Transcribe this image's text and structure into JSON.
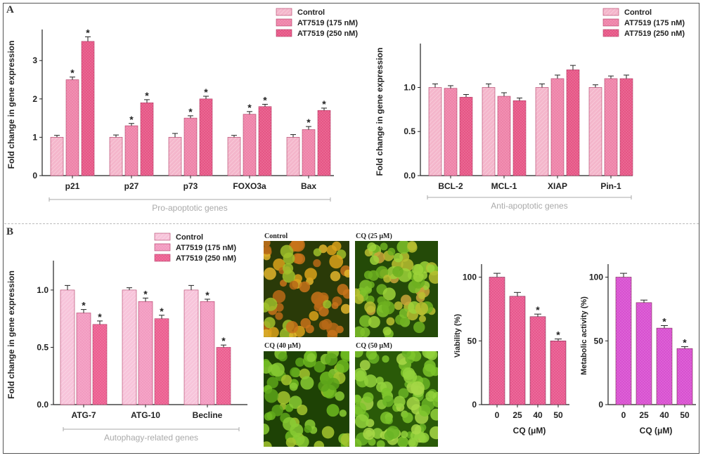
{
  "panels": {
    "a_label": "A",
    "b_label": "B"
  },
  "colors": {
    "control": "#f4b6cb",
    "dose175": "#ee82a8",
    "dose250": "#e65585",
    "b_control": "#f7c4da",
    "b_dose175": "#f29ac0",
    "b_dose250": "#ec5e90",
    "viability": "#e8578d",
    "metabolic": "#d84fd0"
  },
  "chart_data": [
    {
      "id": "pro",
      "type": "bar",
      "title": "",
      "ylabel": "Fold change in gene expression",
      "xlabel": "",
      "group_label": "Pro-apoptotic genes",
      "categories": [
        "p21",
        "p27",
        "p73",
        "FOXO3a",
        "Bax"
      ],
      "ylim": [
        0,
        3.7
      ],
      "yticks": [
        "0",
        "1",
        "2",
        "3"
      ],
      "legend_position": "top-right",
      "series": [
        {
          "name": "Control",
          "values": [
            1.0,
            1.0,
            1.0,
            1.0,
            1.0
          ],
          "errors": [
            0.05,
            0.06,
            0.1,
            0.05,
            0.07
          ],
          "stars": [
            false,
            false,
            false,
            false,
            false
          ]
        },
        {
          "name": "AT7519 (175 nM)",
          "values": [
            2.5,
            1.3,
            1.5,
            1.6,
            1.2
          ],
          "errors": [
            0.07,
            0.06,
            0.06,
            0.07,
            0.08
          ],
          "stars": [
            true,
            true,
            true,
            true,
            true
          ]
        },
        {
          "name": "AT7519 (250 nM)",
          "values": [
            3.5,
            1.9,
            2.0,
            1.8,
            1.7
          ],
          "errors": [
            0.12,
            0.08,
            0.07,
            0.06,
            0.06
          ],
          "stars": [
            true,
            true,
            true,
            true,
            true
          ]
        }
      ],
      "star_symbol": "*"
    },
    {
      "id": "anti",
      "type": "bar",
      "title": "",
      "ylabel": "Fold change in gene expression",
      "xlabel": "",
      "group_label": "Anti-apoptotic genes",
      "categories": [
        "BCL-2",
        "MCL-1",
        "XIAP",
        "Pin-1"
      ],
      "ylim": [
        0,
        1.45
      ],
      "yticks": [
        "0.0",
        "0.5",
        "1.0"
      ],
      "legend_position": "top-right",
      "series": [
        {
          "name": "Control",
          "values": [
            1.0,
            1.0,
            1.0,
            1.0
          ],
          "errors": [
            0.04,
            0.04,
            0.04,
            0.03
          ]
        },
        {
          "name": "AT7519 (175 nM)",
          "values": [
            0.99,
            0.9,
            1.1,
            1.1
          ],
          "errors": [
            0.03,
            0.04,
            0.04,
            0.03
          ]
        },
        {
          "name": "AT7519 (250 nM)",
          "values": [
            0.89,
            0.85,
            1.2,
            1.1
          ],
          "errors": [
            0.03,
            0.03,
            0.05,
            0.04
          ]
        }
      ]
    },
    {
      "id": "autophagy",
      "type": "bar",
      "title": "",
      "ylabel": "Fold change in gene expression",
      "xlabel": "",
      "group_label": "Autophagy-related genes",
      "categories": [
        "ATG-7",
        "ATG-10",
        "Becline"
      ],
      "ylim": [
        0,
        1.22
      ],
      "yticks": [
        "0.0",
        "0.5",
        "1.0"
      ],
      "legend_position": "top",
      "series": [
        {
          "name": "Control",
          "values": [
            1.0,
            1.0,
            1.0
          ],
          "errors": [
            0.04,
            0.02,
            0.04
          ],
          "stars": [
            false,
            false,
            false
          ]
        },
        {
          "name": "AT7519 (175 nM)",
          "values": [
            0.8,
            0.9,
            0.9
          ],
          "errors": [
            0.03,
            0.03,
            0.02
          ],
          "stars": [
            true,
            true,
            true
          ]
        },
        {
          "name": "AT7519 (250 nM)",
          "values": [
            0.7,
            0.75,
            0.5
          ],
          "errors": [
            0.03,
            0.03,
            0.02
          ],
          "stars": [
            true,
            true,
            true
          ]
        }
      ],
      "star_symbol": "*"
    },
    {
      "id": "viability",
      "type": "bar",
      "title": "",
      "ylabel": "Viability (%)",
      "xlabel": "CQ (μM)",
      "categories": [
        "0",
        "25",
        "40",
        "50"
      ],
      "ylim": [
        0,
        108
      ],
      "yticks": [
        "0",
        "50",
        "100"
      ],
      "series": [
        {
          "name": "",
          "values": [
            100,
            85,
            69,
            50
          ],
          "errors": [
            3,
            3,
            2,
            1.5
          ],
          "stars": [
            false,
            false,
            true,
            true
          ]
        }
      ],
      "star_symbol": "*"
    },
    {
      "id": "metabolic",
      "type": "bar",
      "title": "",
      "ylabel": "Metabolic activity (%)",
      "xlabel": "CQ (μM)",
      "categories": [
        "0",
        "25",
        "40",
        "50"
      ],
      "ylim": [
        0,
        108
      ],
      "yticks": [
        "0",
        "50",
        "100"
      ],
      "series": [
        {
          "name": "",
          "values": [
            100,
            80,
            60,
            44
          ],
          "errors": [
            3,
            2,
            2,
            1.5
          ],
          "stars": [
            false,
            false,
            true,
            true
          ]
        }
      ],
      "star_symbol": "*"
    }
  ],
  "photos": [
    {
      "label": "Control",
      "tone": "orange-rich"
    },
    {
      "label": "CQ (25 μM)",
      "tone": "green-some-orange"
    },
    {
      "label": "CQ (40 μM)",
      "tone": "green"
    },
    {
      "label": "CQ (50 μM)",
      "tone": "green-dense"
    }
  ]
}
